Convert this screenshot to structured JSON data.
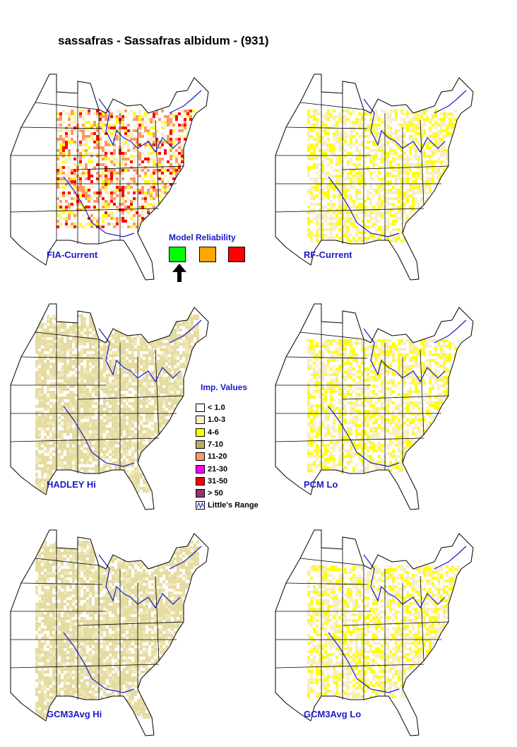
{
  "title": "sassafras - Sassafras albidum - (931)",
  "maps": [
    {
      "label": "FIA-Current",
      "intensity": "high"
    },
    {
      "label": "RF-Current",
      "intensity": "medium"
    },
    {
      "label": "HADLEY Hi",
      "intensity": "low"
    },
    {
      "label": "PCM Lo",
      "intensity": "medium"
    },
    {
      "label": "GCM3Avg Hi",
      "intensity": "low"
    },
    {
      "label": "GCM3Avg Lo",
      "intensity": "medium"
    }
  ],
  "model_reliability": {
    "title": "Model Reliability",
    "levels": [
      {
        "color": "#00ff00",
        "selected": true
      },
      {
        "color": "#ffa500",
        "selected": false
      },
      {
        "color": "#ff0000",
        "selected": false
      }
    ]
  },
  "legend": {
    "title": "Imp. Values",
    "items": [
      {
        "label": "< 1.0",
        "color": "#ffffff"
      },
      {
        "label": "1.0-3",
        "color": "#f7efc4"
      },
      {
        "label": "4-6",
        "color": "#ffff00"
      },
      {
        "label": "7-10",
        "color": "#b8b060"
      },
      {
        "label": "11-20",
        "color": "#ff9966"
      },
      {
        "label": "21-30",
        "color": "#ff00ff"
      },
      {
        "label": "31-50",
        "color": "#ff0000"
      },
      {
        "label": "> 50",
        "color": "#993366"
      }
    ],
    "range_label": "Little's Range",
    "range_color": "#1a1acc"
  }
}
